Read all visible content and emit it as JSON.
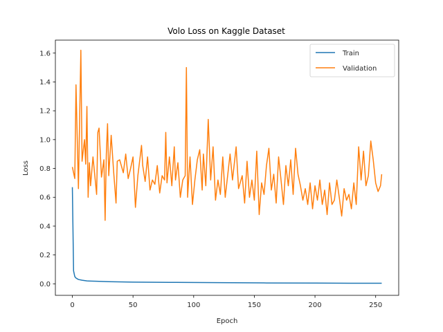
{
  "chart_data": {
    "type": "line",
    "title": "Volo Loss on Kaggle Dataset",
    "xlabel": "Epoch",
    "ylabel": "Loss",
    "xlim": [
      -14,
      269
    ],
    "ylim": [
      -0.08,
      1.69
    ],
    "xticks": [
      0,
      50,
      100,
      150,
      200,
      250
    ],
    "yticks": [
      0.0,
      0.2,
      0.4,
      0.6,
      0.8,
      1.0,
      1.2,
      1.4,
      1.6
    ],
    "ytick_labels": [
      "0.0",
      "0.2",
      "0.4",
      "0.6",
      "0.8",
      "1.0",
      "1.2",
      "1.4",
      "1.6"
    ],
    "grid": false,
    "legend_position": "top-right",
    "series": [
      {
        "name": "Train",
        "color": "#1f77b4",
        "keypoints": [
          [
            0,
            0.67
          ],
          [
            1,
            0.09
          ],
          [
            2,
            0.05
          ],
          [
            3,
            0.04
          ],
          [
            5,
            0.03
          ],
          [
            8,
            0.025
          ],
          [
            12,
            0.02
          ],
          [
            20,
            0.018
          ],
          [
            30,
            0.015
          ],
          [
            50,
            0.012
          ],
          [
            80,
            0.01
          ],
          [
            120,
            0.008
          ],
          [
            160,
            0.006
          ],
          [
            200,
            0.005
          ],
          [
            230,
            0.004
          ],
          [
            255,
            0.004
          ]
        ]
      },
      {
        "name": "Validation",
        "color": "#ff7f0e",
        "keypoints": [
          [
            0,
            0.81
          ],
          [
            2,
            0.73
          ],
          [
            3,
            1.38
          ],
          [
            5,
            0.66
          ],
          [
            7,
            1.62
          ],
          [
            8,
            0.85
          ],
          [
            10,
            1.0
          ],
          [
            11,
            0.83
          ],
          [
            12,
            1.23
          ],
          [
            13,
            0.6
          ],
          [
            14,
            0.84
          ],
          [
            15,
            0.68
          ],
          [
            17,
            0.88
          ],
          [
            20,
            0.62
          ],
          [
            21,
            1.05
          ],
          [
            22,
            1.08
          ],
          [
            24,
            0.74
          ],
          [
            26,
            0.86
          ],
          [
            27,
            0.44
          ],
          [
            28,
            0.9
          ],
          [
            29,
            1.11
          ],
          [
            30,
            0.75
          ],
          [
            32,
            1.03
          ],
          [
            34,
            0.78
          ],
          [
            36,
            0.56
          ],
          [
            37,
            0.85
          ],
          [
            39,
            0.86
          ],
          [
            42,
            0.77
          ],
          [
            44,
            0.9
          ],
          [
            46,
            0.73
          ],
          [
            48,
            0.8
          ],
          [
            50,
            0.88
          ],
          [
            52,
            0.53
          ],
          [
            54,
            0.75
          ],
          [
            57,
            0.96
          ],
          [
            58,
            0.82
          ],
          [
            60,
            0.71
          ],
          [
            62,
            0.88
          ],
          [
            64,
            0.65
          ],
          [
            66,
            0.72
          ],
          [
            68,
            0.69
          ],
          [
            70,
            0.82
          ],
          [
            72,
            0.63
          ],
          [
            74,
            0.75
          ],
          [
            76,
            0.72
          ],
          [
            77,
            1.05
          ],
          [
            78,
            0.7
          ],
          [
            80,
            0.88
          ],
          [
            82,
            0.68
          ],
          [
            84,
            0.95
          ],
          [
            85,
            0.72
          ],
          [
            87,
            0.84
          ],
          [
            89,
            0.6
          ],
          [
            91,
            0.72
          ],
          [
            93,
            0.75
          ],
          [
            94,
            1.5
          ],
          [
            95,
            0.6
          ],
          [
            97,
            0.88
          ],
          [
            99,
            0.55
          ],
          [
            101,
            0.72
          ],
          [
            103,
            0.86
          ],
          [
            105,
            0.93
          ],
          [
            107,
            0.65
          ],
          [
            108,
            0.9
          ],
          [
            110,
            0.68
          ],
          [
            112,
            1.14
          ],
          [
            114,
            0.72
          ],
          [
            116,
            0.95
          ],
          [
            118,
            0.58
          ],
          [
            120,
            0.72
          ],
          [
            122,
            0.62
          ],
          [
            124,
            0.88
          ],
          [
            126,
            0.6
          ],
          [
            128,
            0.75
          ],
          [
            130,
            0.9
          ],
          [
            132,
            0.72
          ],
          [
            135,
            0.95
          ],
          [
            137,
            0.66
          ],
          [
            140,
            0.75
          ],
          [
            142,
            0.56
          ],
          [
            144,
            0.85
          ],
          [
            146,
            0.6
          ],
          [
            148,
            0.72
          ],
          [
            150,
            0.58
          ],
          [
            152,
            0.92
          ],
          [
            154,
            0.48
          ],
          [
            156,
            0.7
          ],
          [
            158,
            0.62
          ],
          [
            160,
            0.82
          ],
          [
            162,
            0.94
          ],
          [
            164,
            0.65
          ],
          [
            166,
            0.76
          ],
          [
            168,
            0.56
          ],
          [
            170,
            0.88
          ],
          [
            172,
            0.72
          ],
          [
            174,
            0.55
          ],
          [
            176,
            0.82
          ],
          [
            178,
            0.68
          ],
          [
            180,
            0.86
          ],
          [
            182,
            0.62
          ],
          [
            184,
            0.94
          ],
          [
            186,
            0.76
          ],
          [
            188,
            0.68
          ],
          [
            190,
            0.58
          ],
          [
            192,
            0.66
          ],
          [
            194,
            0.55
          ],
          [
            196,
            0.7
          ],
          [
            198,
            0.52
          ],
          [
            200,
            0.68
          ],
          [
            202,
            0.58
          ],
          [
            204,
            0.72
          ],
          [
            206,
            0.55
          ],
          [
            208,
            0.65
          ],
          [
            210,
            0.48
          ],
          [
            212,
            0.7
          ],
          [
            214,
            0.55
          ],
          [
            216,
            0.58
          ],
          [
            218,
            0.72
          ],
          [
            220,
            0.6
          ],
          [
            222,
            0.47
          ],
          [
            224,
            0.66
          ],
          [
            226,
            0.58
          ],
          [
            228,
            0.62
          ],
          [
            230,
            0.52
          ],
          [
            232,
            0.7
          ],
          [
            234,
            0.55
          ],
          [
            236,
            0.95
          ],
          [
            238,
            0.72
          ],
          [
            240,
            0.92
          ],
          [
            242,
            0.68
          ],
          [
            244,
            0.75
          ],
          [
            246,
            0.99
          ],
          [
            248,
            0.86
          ],
          [
            250,
            0.7
          ],
          [
            252,
            0.64
          ],
          [
            254,
            0.68
          ],
          [
            255,
            0.76
          ]
        ]
      }
    ]
  }
}
